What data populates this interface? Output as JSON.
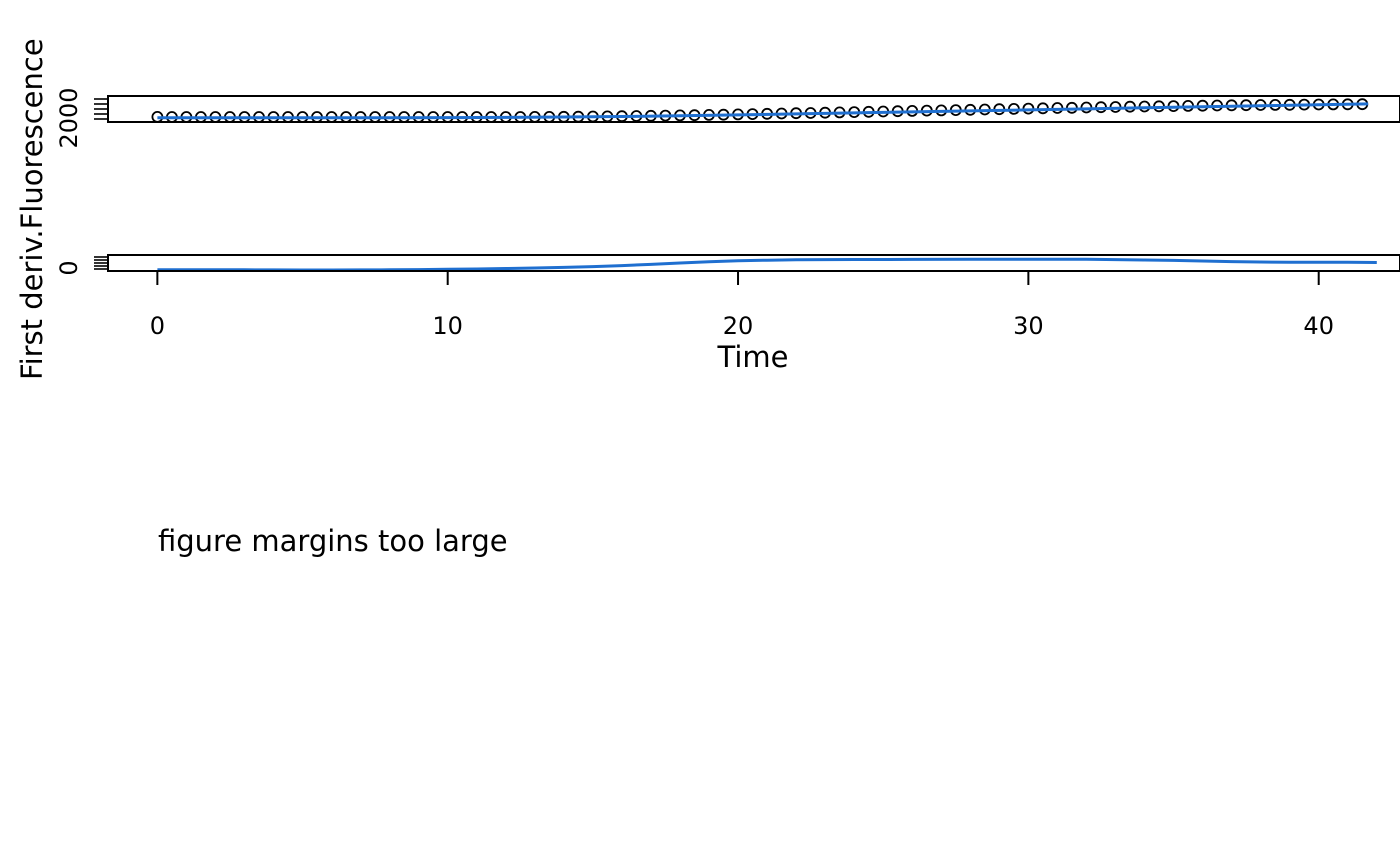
{
  "chart_data": [
    {
      "type": "scatter",
      "ylabel": "Fluorescence",
      "xlim": [
        -1.7,
        42.8
      ],
      "ylim": [
        1600,
        2500
      ],
      "y_ticks": [
        2000
      ],
      "xlabel": "",
      "points": [
        [
          0.0,
          1777
        ],
        [
          0.5,
          1771
        ],
        [
          1.0,
          1768
        ],
        [
          1.5,
          1766
        ],
        [
          2.0,
          1766
        ],
        [
          2.5,
          1766
        ],
        [
          3.0,
          1765
        ],
        [
          3.5,
          1764
        ],
        [
          4.0,
          1764
        ],
        [
          4.5,
          1765
        ],
        [
          5.0,
          1766
        ],
        [
          5.5,
          1765
        ],
        [
          6.0,
          1764
        ],
        [
          6.5,
          1763
        ],
        [
          7.0,
          1762
        ],
        [
          7.5,
          1762
        ],
        [
          8.0,
          1762
        ],
        [
          8.5,
          1762
        ],
        [
          9.0,
          1762
        ],
        [
          9.5,
          1762
        ],
        [
          10.0,
          1763
        ],
        [
          10.5,
          1764
        ],
        [
          11.0,
          1766
        ],
        [
          11.5,
          1768
        ],
        [
          12.0,
          1770
        ],
        [
          12.5,
          1772
        ],
        [
          13.0,
          1775
        ],
        [
          13.5,
          1778
        ],
        [
          14.0,
          1781
        ],
        [
          14.5,
          1785
        ],
        [
          15.0,
          1790
        ],
        [
          15.5,
          1795
        ],
        [
          16.0,
          1800
        ],
        [
          16.5,
          1806
        ],
        [
          17.0,
          1813
        ],
        [
          17.5,
          1820
        ],
        [
          18.0,
          1828
        ],
        [
          18.5,
          1836
        ],
        [
          19.0,
          1845
        ],
        [
          19.5,
          1854
        ],
        [
          20.0,
          1863
        ],
        [
          20.5,
          1873
        ],
        [
          21.0,
          1883
        ],
        [
          21.5,
          1893
        ],
        [
          22.0,
          1903
        ],
        [
          22.5,
          1913
        ],
        [
          23.0,
          1923
        ],
        [
          23.5,
          1933
        ],
        [
          24.0,
          1943
        ],
        [
          24.5,
          1953
        ],
        [
          25.0,
          1963
        ],
        [
          25.5,
          1973
        ],
        [
          26.0,
          1983
        ],
        [
          26.5,
          1993
        ],
        [
          27.0,
          2003
        ],
        [
          27.5,
          2013
        ],
        [
          28.0,
          2023
        ],
        [
          28.5,
          2033
        ],
        [
          29.0,
          2043
        ],
        [
          29.5,
          2053
        ],
        [
          30.0,
          2063
        ],
        [
          30.5,
          2073
        ],
        [
          31.0,
          2083
        ],
        [
          31.5,
          2093
        ],
        [
          32.0,
          2102
        ],
        [
          32.5,
          2111
        ],
        [
          33.0,
          2120
        ],
        [
          33.5,
          2129
        ],
        [
          34.0,
          2137
        ],
        [
          34.5,
          2145
        ],
        [
          35.0,
          2152
        ],
        [
          35.5,
          2159
        ],
        [
          36.0,
          2165
        ],
        [
          36.5,
          2171
        ],
        [
          37.0,
          2177
        ],
        [
          37.5,
          2182
        ],
        [
          38.0,
          2187
        ],
        [
          38.5,
          2192
        ],
        [
          39.0,
          2197
        ],
        [
          39.5,
          2201
        ],
        [
          40.0,
          2205
        ],
        [
          40.5,
          2209
        ],
        [
          41.0,
          2213
        ],
        [
          41.5,
          2217
        ]
      ],
      "fit_line": [
        [
          0.0,
          1745
        ],
        [
          2.0,
          1746
        ],
        [
          4.0,
          1747
        ],
        [
          6.0,
          1748
        ],
        [
          8.0,
          1750
        ],
        [
          10.0,
          1753
        ],
        [
          12.0,
          1760
        ],
        [
          14.0,
          1772
        ],
        [
          16.0,
          1790
        ],
        [
          18.0,
          1814
        ],
        [
          20.0,
          1845
        ],
        [
          22.0,
          1880
        ],
        [
          24.0,
          1915
        ],
        [
          26.0,
          1950
        ],
        [
          28.0,
          1985
        ],
        [
          30.0,
          2020
        ],
        [
          32.0,
          2055
        ],
        [
          34.0,
          2090
        ],
        [
          36.0,
          2125
        ],
        [
          38.0,
          2160
        ],
        [
          40.0,
          2195
        ],
        [
          41.7,
          2228
        ]
      ],
      "colors": {
        "points": "#000000",
        "line": "#1f6fd0"
      }
    },
    {
      "type": "line",
      "ylabel": "First deriv.",
      "xlabel": "Time",
      "xlim": [
        -1.7,
        42.8
      ],
      "ylim": [
        -10,
        150
      ],
      "x_ticks": [
        0,
        10,
        20,
        30,
        40
      ],
      "y_ticks": [
        0
      ],
      "series": [
        {
          "values": [
            [
              0.0,
              2
            ],
            [
              1.0,
              3
            ],
            [
              2.0,
              2
            ],
            [
              3.0,
              2
            ],
            [
              4.0,
              1
            ],
            [
              5.0,
              0
            ],
            [
              6.0,
              0
            ],
            [
              7.0,
              1
            ],
            [
              8.0,
              2
            ],
            [
              9.0,
              4
            ],
            [
              10.0,
              7
            ],
            [
              11.0,
              10
            ],
            [
              12.0,
              15
            ],
            [
              13.0,
              20
            ],
            [
              14.0,
              26
            ],
            [
              15.0,
              34
            ],
            [
              16.0,
              44
            ],
            [
              17.0,
              56
            ],
            [
              18.0,
              70
            ],
            [
              19.0,
              82
            ],
            [
              20.0,
              92
            ],
            [
              21.0,
              98
            ],
            [
              22.0,
              102
            ],
            [
              23.0,
              104
            ],
            [
              24.0,
              105
            ],
            [
              26.0,
              106
            ],
            [
              28.0,
              107
            ],
            [
              30.0,
              107
            ],
            [
              31.0,
              108
            ],
            [
              32.0,
              107
            ],
            [
              33.0,
              104
            ],
            [
              34.0,
              100
            ],
            [
              35.0,
              96
            ],
            [
              36.0,
              90
            ],
            [
              37.0,
              84
            ],
            [
              38.0,
              80
            ],
            [
              39.0,
              78
            ],
            [
              40.0,
              78
            ],
            [
              41.0,
              77
            ],
            [
              42.0,
              75
            ]
          ]
        }
      ],
      "colors": {
        "line": "#1f6fd0"
      }
    }
  ],
  "labels": {
    "y_combined": "First deriv.Fluorescence",
    "x_title": "Time",
    "x_ticks": [
      "0",
      "10",
      "20",
      "30",
      "40"
    ],
    "top_y_tick": "2000",
    "bottom_y_tick": "0"
  },
  "message": "figure margins too large"
}
